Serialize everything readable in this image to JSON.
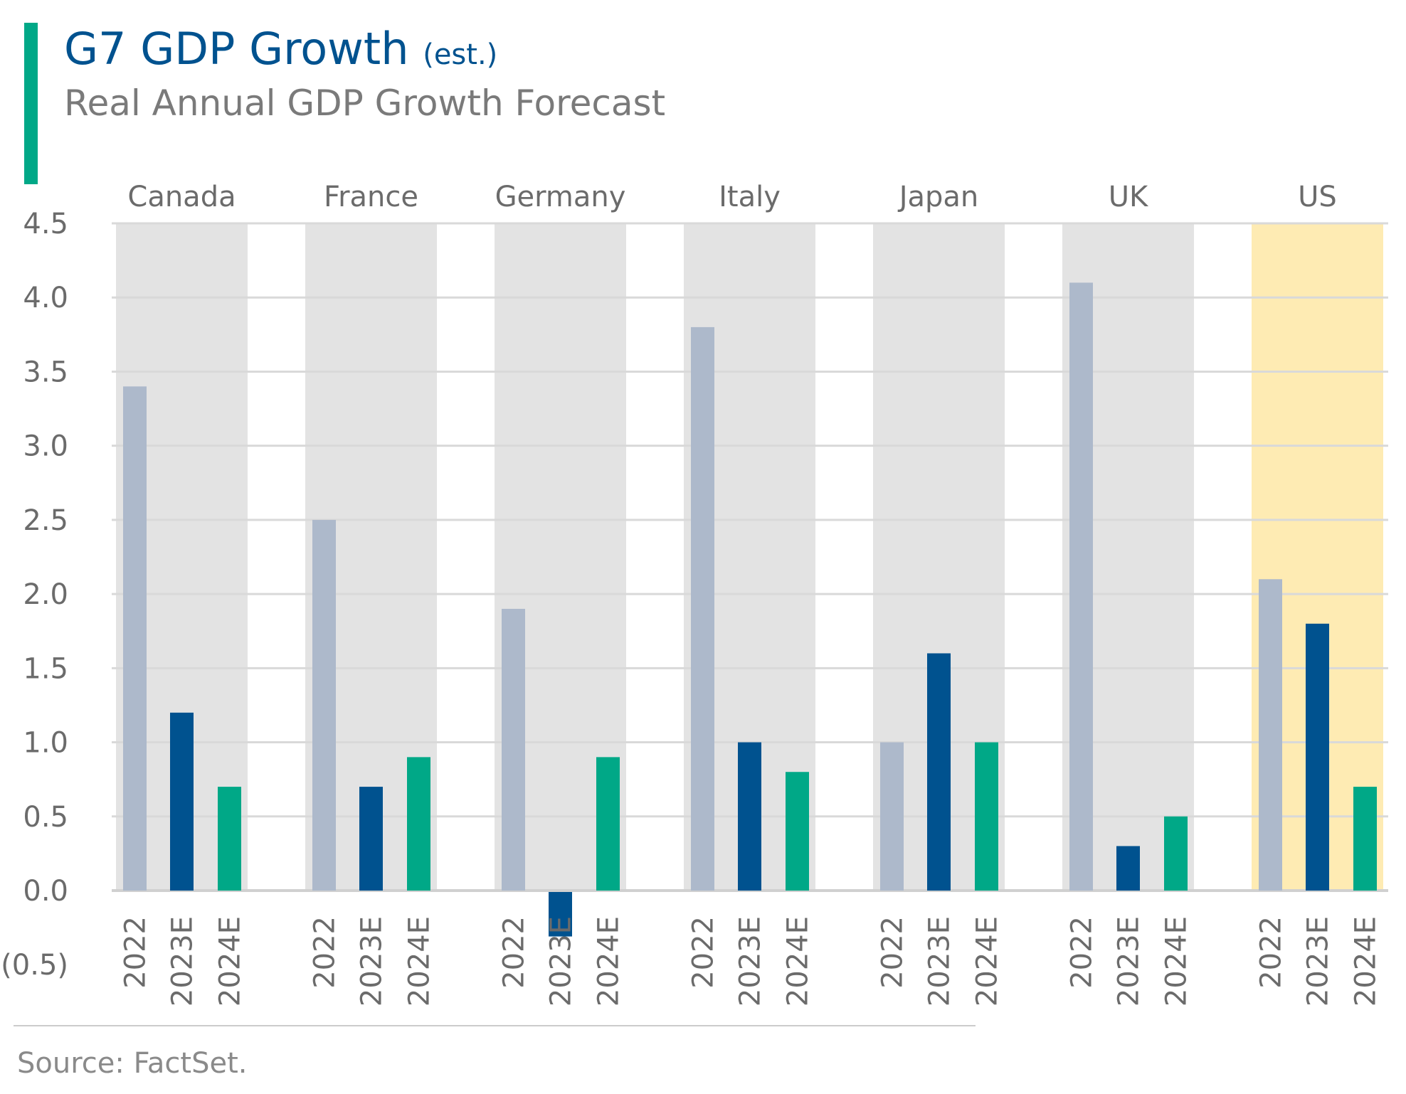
{
  "chart_data": {
    "type": "bar",
    "title": "G7 GDP Growth",
    "title_suffix": "(est.)",
    "subtitle": "Real Annual GDP Growth Forecast",
    "source": "Source: FactSet.",
    "ylim": [
      -0.5,
      4.5
    ],
    "yticks": [
      4.5,
      4.0,
      3.5,
      3.0,
      2.5,
      2.0,
      1.5,
      1.0,
      0.5,
      0.0,
      -0.5
    ],
    "ytick_labels": [
      "4.5",
      "4.0",
      "3.5",
      "3.0",
      "2.5",
      "2.0",
      "1.5",
      "1.0",
      "0.5",
      "0.0",
      "(0.5)"
    ],
    "grid": true,
    "periods": [
      "2022",
      "2023E",
      "2024E"
    ],
    "groups": [
      {
        "name": "Canada",
        "values": [
          3.4,
          1.2,
          0.7
        ],
        "highlight": false
      },
      {
        "name": "France",
        "values": [
          2.5,
          0.7,
          0.9
        ],
        "highlight": false
      },
      {
        "name": "Germany",
        "values": [
          1.9,
          -0.3,
          0.9
        ],
        "highlight": false
      },
      {
        "name": "Italy",
        "values": [
          3.8,
          1.0,
          0.8
        ],
        "highlight": false
      },
      {
        "name": "Japan",
        "values": [
          1.0,
          1.6,
          1.0
        ],
        "highlight": false
      },
      {
        "name": "UK",
        "values": [
          4.1,
          0.3,
          0.5
        ],
        "highlight": false
      },
      {
        "name": "US",
        "values": [
          2.1,
          1.8,
          0.7
        ],
        "highlight": true
      }
    ],
    "colors": {
      "2022": "#adb9cb",
      "2023E": "#00528f",
      "2024E": "#00a887",
      "group_bg": "#e3e3e3",
      "highlight_bg": "#feebb3",
      "title": "#00528f",
      "accent": "#00a887",
      "text": "#6b6b6b",
      "grid": "#d9d9d9"
    }
  }
}
